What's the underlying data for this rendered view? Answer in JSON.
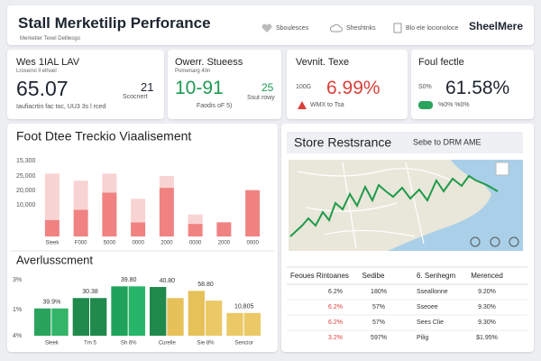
{
  "header": {
    "title": "Stall Merketilip Perforance",
    "subtitle": "Merketier Texel Delllesgo",
    "nav": [
      "Sboulesces",
      "Sheshtnks",
      "Blo ele locionoloce"
    ],
    "logo": "SheelMere"
  },
  "kpis": [
    {
      "title": "Wes 1IAL LAV",
      "subtitle": "Lrosenvi ll elhuel",
      "value": "65.07",
      "side_value": "21",
      "side_label": "Scocnert",
      "footer": "Iaufiacrtin fac toc, UU3 3s l rced"
    },
    {
      "title": "Owerr. Stueess",
      "subtitle": "Pomenarg 40n",
      "value": "10-91",
      "side_value": "25",
      "side_label": "Ssut rowy",
      "footer": "Faodis oF 5)"
    },
    {
      "title": "Vevnit. Texe",
      "small": "100G",
      "value": "6.99%",
      "footer": "WMX to Tsa"
    },
    {
      "title": "Foul fectle",
      "small": "S0%",
      "value": "61.58%",
      "footer": "%0% %0%"
    }
  ],
  "track_chart": {
    "type": "bar",
    "title": "Foot Dtee Treckio Viaalisement",
    "axis_labels": [
      "15,300",
      "25,000",
      "20,000",
      "10,000"
    ],
    "categories": [
      "Sleek",
      "F000",
      "5000",
      "0000",
      "2000",
      "0000",
      "2000",
      "0000"
    ],
    "ylim": [
      0,
      100
    ],
    "series": [
      {
        "color": "#f08282",
        "values": [
          21,
          34,
          56,
          18,
          62,
          16,
          18,
          59
        ]
      },
      {
        "color": "#f8d3d3",
        "values": [
          59,
          37,
          24,
          30,
          15,
          12,
          0,
          0
        ]
      }
    ]
  },
  "assess_chart": {
    "type": "bar",
    "title": "Averlusscment",
    "axis_labels": [
      "3%",
      "1%",
      "4%"
    ],
    "categories": [
      "Sleek",
      "Tm 5",
      "Sh 6%",
      "Curelle",
      "Sie 8%",
      "Sencior"
    ],
    "value_texts": [
      "39.9%",
      "30.38",
      "39.80",
      "40.80",
      "58.80",
      "10,805"
    ],
    "ylim": [
      0,
      100
    ],
    "series": [
      {
        "colors": [
          "#2aa35c",
          "#1f8a4c",
          "#1fa35a",
          "#1f8a4c",
          "#e6c15a",
          "#ebc967"
        ],
        "values": [
          42,
          58,
          76,
          75,
          69,
          35
        ]
      },
      {
        "colors": [
          "#33b468",
          "#1f8a4c",
          "#27b56a",
          "#e6c15a",
          "#ebc967",
          "#ebc967"
        ],
        "values": [
          42,
          58,
          76,
          58,
          54,
          35
        ]
      }
    ]
  },
  "store": {
    "title": "Store Restsrance",
    "subtitle": "Sebe to DRM AME"
  },
  "table": {
    "headers": [
      "Feoues Rintoanes",
      "Sedibe",
      "6. Senhegm",
      "Merenced"
    ],
    "rows": [
      [
        "6.2%",
        "180%",
        "Sseallonne",
        "9.20%"
      ],
      [
        "6.2%",
        "57%",
        "Sseoee",
        "9.30%"
      ],
      [
        "6.2%",
        "57%",
        "Sees Clie",
        "9.30%"
      ],
      [
        "3.2%",
        "597%",
        "Pilig",
        "$1.95%"
      ]
    ]
  }
}
